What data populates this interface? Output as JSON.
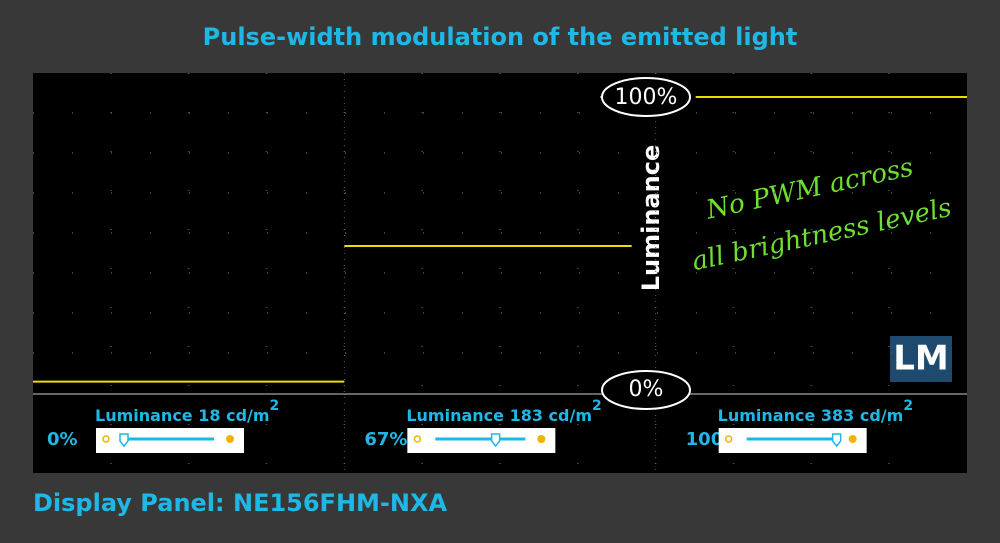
{
  "title": "Pulse-width modulation of the emitted light",
  "footer": "Display Panel: NE156FHM-NXA",
  "logo": "LM",
  "chart_data": {
    "type": "line",
    "ylim": [
      0,
      100
    ],
    "yticks": [
      {
        "value": 0,
        "label": "0%"
      },
      {
        "value": 100,
        "label": "100%"
      }
    ],
    "y_label": "Luminance",
    "annotation": [
      "No PWM across",
      "all brightness levels"
    ],
    "color": "#e8e000",
    "grid": true,
    "segments": [
      {
        "level": 3.5,
        "brightness": 0,
        "brightness_label": "0%",
        "readout": "Luminance",
        "luminance": 18,
        "unit": "cd/m",
        "unit_exponent": "2"
      },
      {
        "level": 49.5,
        "brightness": 67,
        "brightness_label": "67%",
        "readout": "Luminance",
        "luminance": 183,
        "unit": "cd/m",
        "unit_exponent": "2"
      },
      {
        "level": 100,
        "brightness": 100,
        "brightness_label": "100%",
        "readout": "Luminance",
        "luminance": 383,
        "unit": "cd/m",
        "unit_exponent": "2"
      }
    ]
  }
}
